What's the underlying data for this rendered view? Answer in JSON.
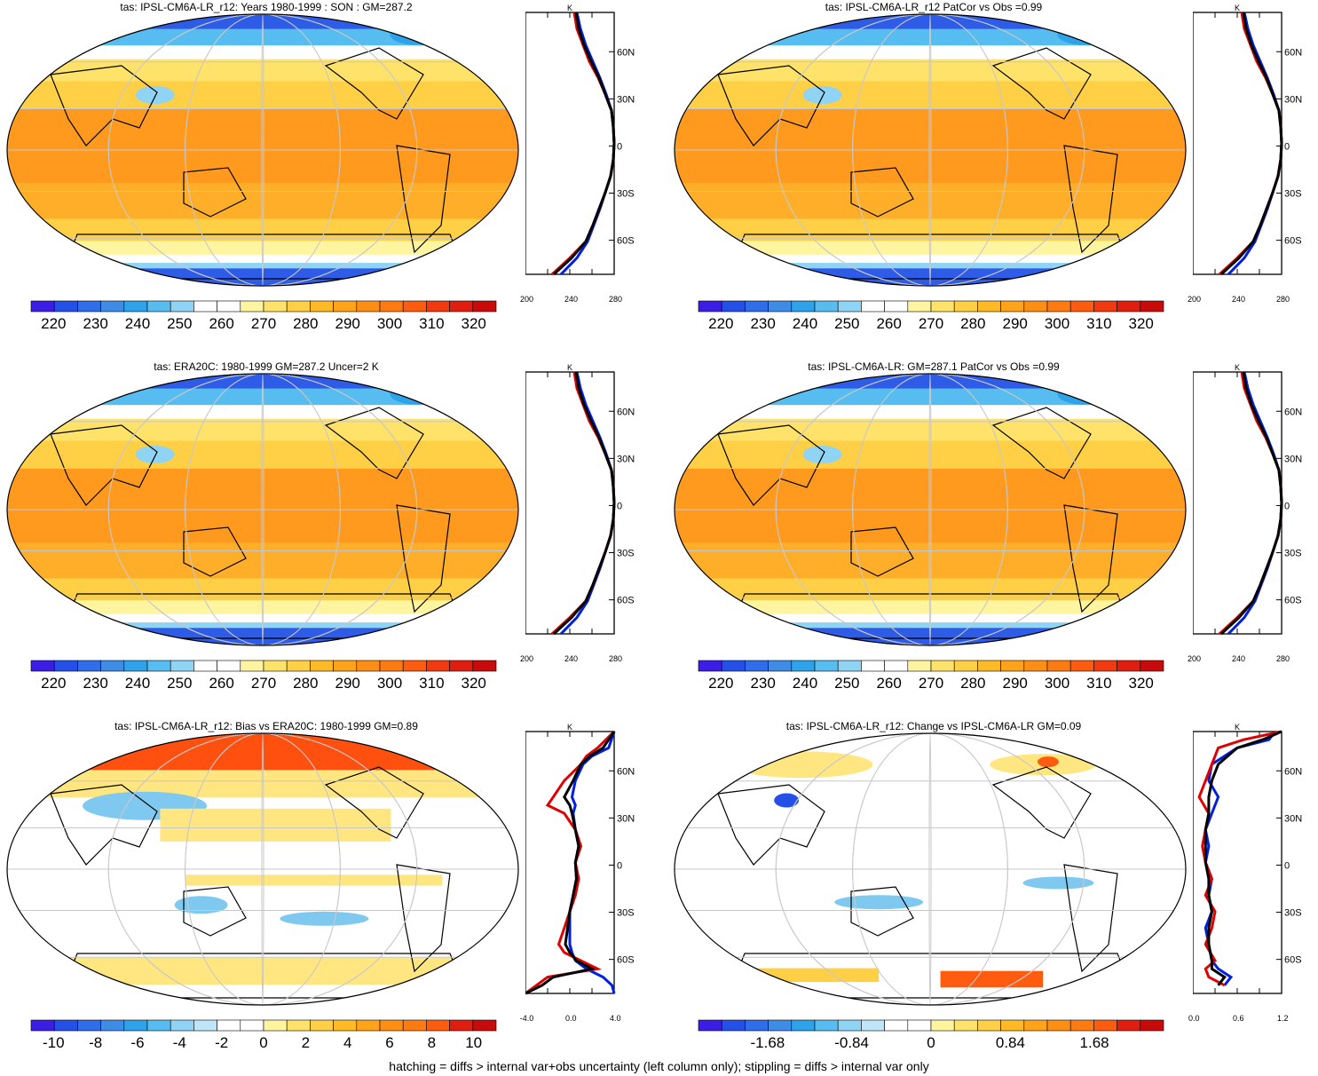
{
  "footer": "hatching = diffs > internal var+obs uncertainty (left column only); stippling = diffs > internal var only",
  "panels": [
    {
      "title": "tas: IPSL-CM6A-LR_r12: Years 1980-1999 : SON : GM=287.2",
      "kind": "absolute",
      "profile_unit": "K",
      "profile_xticks": [
        "200",
        "240",
        "280"
      ],
      "lat_ticks": [
        "60N",
        "30N",
        "0",
        "30S",
        "60S"
      ],
      "colorbar_labels": [
        "220",
        "230",
        "240",
        "250",
        "260",
        "270",
        "280",
        "290",
        "300",
        "310",
        "320"
      ]
    },
    {
      "title": "tas: IPSL-CM6A-LR_r12 PatCor vs Obs =0.99",
      "kind": "absolute",
      "profile_unit": "K",
      "profile_xticks": [
        "200",
        "240",
        "280"
      ],
      "lat_ticks": [
        "60N",
        "30N",
        "0",
        "30S",
        "60S"
      ],
      "colorbar_labels": [
        "220",
        "230",
        "240",
        "250",
        "260",
        "270",
        "280",
        "290",
        "300",
        "310",
        "320"
      ]
    },
    {
      "title": "tas: ERA20C: 1980-1999 GM=287.2 Uncer=2 K",
      "kind": "absolute",
      "profile_unit": "K",
      "profile_xticks": [
        "200",
        "240",
        "280"
      ],
      "lat_ticks": [
        "60N",
        "30N",
        "0",
        "30S",
        "60S"
      ],
      "colorbar_labels": [
        "220",
        "230",
        "240",
        "250",
        "260",
        "270",
        "280",
        "290",
        "300",
        "310",
        "320"
      ]
    },
    {
      "title": "tas: IPSL-CM6A-LR: GM=287.1 PatCor vs Obs =0.99",
      "kind": "absolute",
      "profile_unit": "K",
      "profile_xticks": [
        "200",
        "240",
        "280"
      ],
      "lat_ticks": [
        "60N",
        "30N",
        "0",
        "30S",
        "60S"
      ],
      "colorbar_labels": [
        "220",
        "230",
        "240",
        "250",
        "260",
        "270",
        "280",
        "290",
        "300",
        "310",
        "320"
      ]
    },
    {
      "title": "tas: IPSL-CM6A-LR_r12: Bias vs ERA20C: 1980-1999  GM=0.89",
      "kind": "bias",
      "profile_unit": "K",
      "profile_xticks": [
        "-4.0",
        "0.0",
        "4.0"
      ],
      "lat_ticks": [
        "60N",
        "30N",
        "0",
        "30S",
        "60S"
      ],
      "colorbar_labels": [
        "-10",
        "-8",
        "-6",
        "-4",
        "-2",
        "0",
        "2",
        "4",
        "6",
        "8",
        "10"
      ]
    },
    {
      "title": "tas: IPSL-CM6A-LR_r12: Change vs IPSL-CM6A-LR GM=0.09",
      "kind": "change",
      "profile_unit": "K",
      "profile_xticks": [
        "0.0",
        "0.6",
        "1.2"
      ],
      "lat_ticks": [
        "60N",
        "30N",
        "0",
        "30S",
        "60S"
      ],
      "colorbar_labels": [
        "-1.68",
        "-0.84",
        "0",
        "0.84",
        "1.68"
      ]
    }
  ],
  "colors": {
    "absolute_palette": [
      "#3b1ee6",
      "#2450e8",
      "#2f6ee8",
      "#3f8ce6",
      "#2fa3ea",
      "#57bdf0",
      "#8fd3f5",
      "#ffffff",
      "#ffffff",
      "#fff5a0",
      "#ffe26a",
      "#ffcf45",
      "#ffba26",
      "#ffa31a",
      "#ff8f14",
      "#ff7a10",
      "#ff5c10",
      "#f23a10",
      "#e01e10",
      "#c80a0a"
    ],
    "map_ocean_main": "#ffae2a",
    "map_ocean_equator": "#ff9a1e",
    "map_sea_ice": "#2f5ce6",
    "map_high_lat": "#ffe26a",
    "bias_positive": "#ffe680",
    "bias_negative": "#7fc8f0",
    "bias_strong_positive": "#ff5010",
    "model_line": "#e00000",
    "obs_line": "#0020e0",
    "ensemble_line": "#000000"
  },
  "chart_data": [
    {
      "type": "heatmap",
      "title": "tas: IPSL-CM6A-LR_r12: Years 1980-1999 : SON : GM=287.2",
      "zonal_profile": {
        "lat": [
          80,
          70,
          60,
          50,
          40,
          30,
          20,
          10,
          0,
          -10,
          -20,
          -30,
          -40,
          -50,
          -60,
          -70,
          -80
        ],
        "model": [
          255,
          258,
          265,
          272,
          282,
          290,
          297,
          299,
          300,
          299,
          296,
          290,
          283,
          276,
          268,
          250,
          230
        ],
        "obs": [
          258,
          262,
          268,
          276,
          284,
          291,
          297,
          299,
          300,
          299,
          296,
          290,
          284,
          277,
          270,
          258,
          240
        ],
        "ensemble": [
          257,
          260,
          266,
          274,
          283,
          290,
          297,
          299,
          300,
          299,
          296,
          290,
          283,
          276,
          268,
          252,
          232
        ]
      },
      "colorbar_range": [
        220,
        320
      ]
    },
    {
      "type": "heatmap",
      "title": "tas: IPSL-CM6A-LR_r12 PatCor vs Obs =0.99",
      "colorbar_range": [
        220,
        320
      ]
    },
    {
      "type": "heatmap",
      "title": "tas: ERA20C: 1980-1999 GM=287.2 Uncer=2 K",
      "colorbar_range": [
        220,
        320
      ]
    },
    {
      "type": "heatmap",
      "title": "tas: IPSL-CM6A-LR: GM=287.1 PatCor vs Obs =0.99",
      "colorbar_range": [
        220,
        320
      ]
    },
    {
      "type": "heatmap",
      "title": "tas: IPSL-CM6A-LR_r12: Bias vs ERA20C: 1980-1999  GM=0.89",
      "zonal_profile": {
        "lat": [
          80,
          70,
          65,
          60,
          50,
          40,
          35,
          30,
          20,
          10,
          0,
          -10,
          -20,
          -30,
          -40,
          -50,
          -55,
          -60,
          -65,
          -70,
          -75,
          -80
        ],
        "model": [
          4.0,
          2.5,
          1.5,
          1.0,
          -0.5,
          -1.5,
          -2.0,
          -0.5,
          0.5,
          1.0,
          0.5,
          0.8,
          0.5,
          0.0,
          -0.5,
          -1.0,
          -0.5,
          1.0,
          2.5,
          -2.0,
          -3.0,
          -4.0
        ],
        "obs": [
          4.0,
          3.5,
          2.0,
          1.2,
          0.5,
          0.2,
          0.5,
          0.3,
          0.5,
          0.8,
          0.5,
          0.6,
          0.3,
          0.0,
          0.0,
          0.0,
          0.2,
          0.5,
          1.5,
          3.0,
          3.8,
          4.0
        ],
        "ensemble": [
          4.0,
          3.0,
          1.8,
          1.0,
          0.3,
          -0.5,
          0.0,
          0.2,
          0.5,
          0.8,
          0.5,
          0.6,
          0.3,
          0.0,
          -0.2,
          -0.4,
          0.0,
          0.6,
          2.0,
          -1.5,
          -2.5,
          -4.0
        ]
      },
      "colorbar_range": [
        -10,
        10
      ]
    },
    {
      "type": "heatmap",
      "title": "tas: IPSL-CM6A-LR_r12: Change vs IPSL-CM6A-LR GM=0.09",
      "zonal_profile": {
        "lat": [
          80,
          75,
          70,
          60,
          50,
          40,
          30,
          20,
          10,
          0,
          -10,
          -20,
          -30,
          -40,
          -50,
          -60,
          -65,
          -70,
          -75
        ],
        "model": [
          1.2,
          0.6,
          0.2,
          0.1,
          0.0,
          -0.1,
          0.05,
          0.0,
          -0.05,
          0.0,
          0.1,
          0.0,
          0.15,
          0.1,
          0.0,
          0.15,
          0.0,
          0.05,
          0.3
        ],
        "obs": [
          1.1,
          1.0,
          0.5,
          0.1,
          0.05,
          0.2,
          0.1,
          0.0,
          0.05,
          0.0,
          0.1,
          0.05,
          0.1,
          0.0,
          0.05,
          0.1,
          0.2,
          0.4,
          0.3
        ],
        "ensemble": [
          1.2,
          0.9,
          0.5,
          0.2,
          0.1,
          0.05,
          0.05,
          0.0,
          0.0,
          0.0,
          0.05,
          0.05,
          0.1,
          0.05,
          0.05,
          0.1,
          0.1,
          0.3,
          0.2
        ]
      },
      "colorbar_range": [
        -1.68,
        1.68
      ]
    }
  ]
}
